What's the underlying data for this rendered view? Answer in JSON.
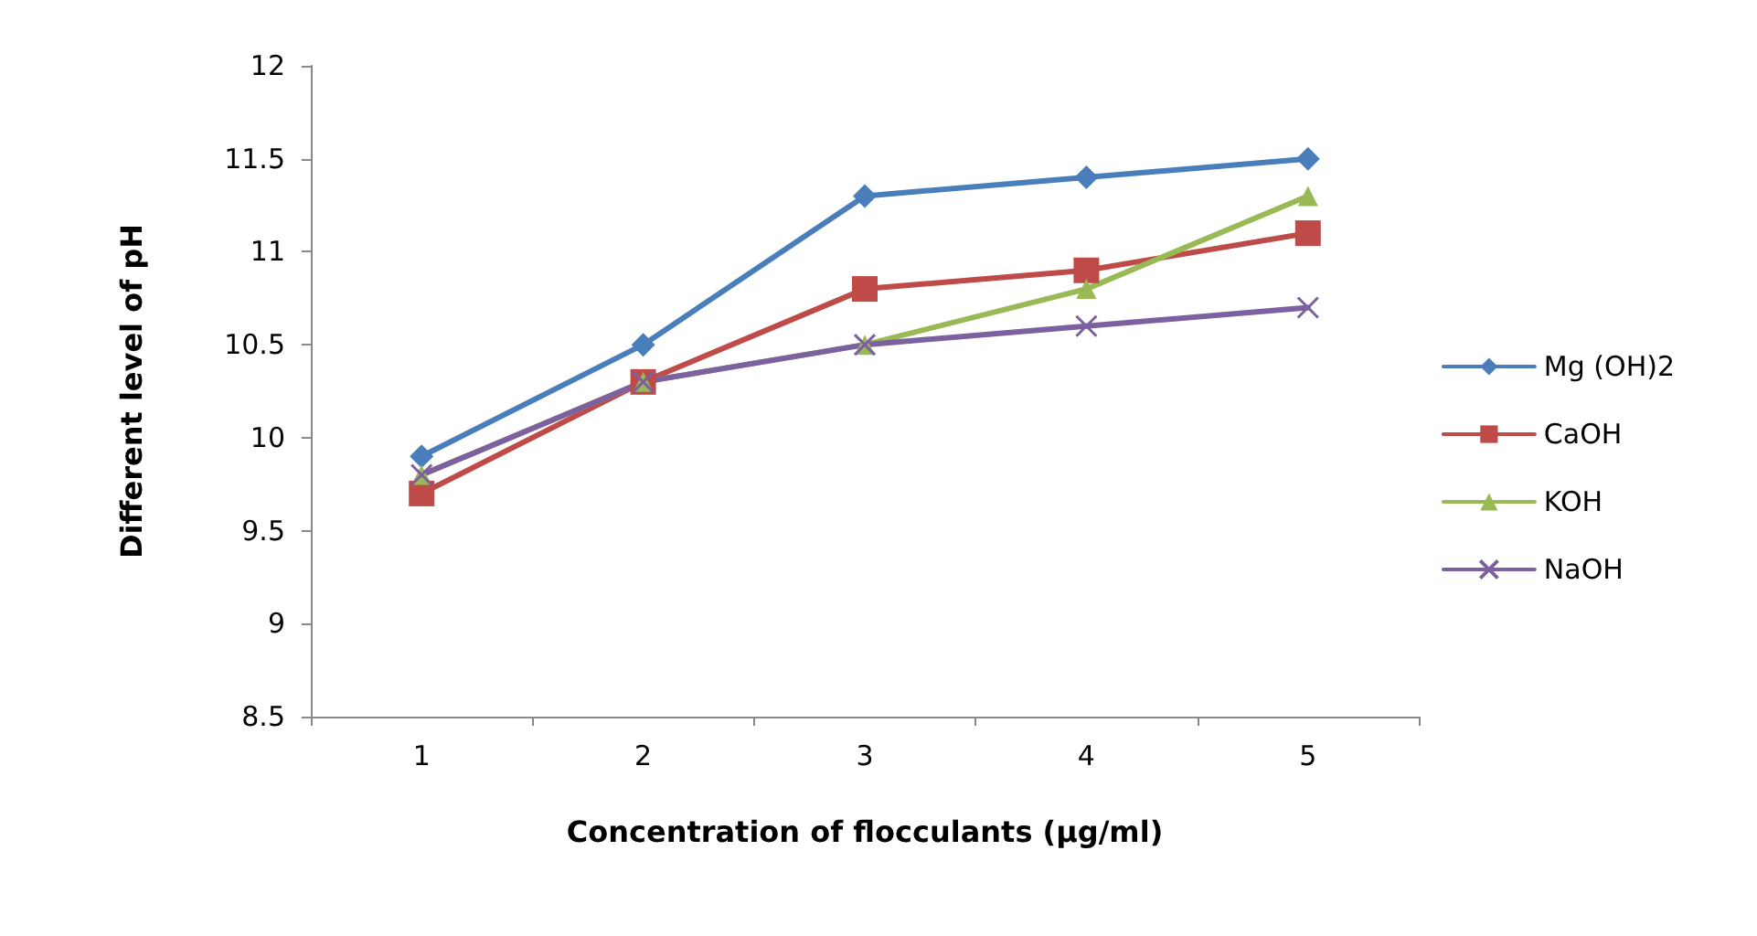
{
  "chart_data": {
    "type": "line",
    "xlabel": "Concentration of flocculants (µg/ml)",
    "ylabel": "Different level of pH",
    "categories": [
      "1",
      "2",
      "3",
      "4",
      "5"
    ],
    "series": [
      {
        "name": "Mg (OH)2",
        "color": "#4a7ebb",
        "marker": "diamond",
        "values": [
          9.9,
          10.5,
          11.3,
          11.4,
          11.5
        ]
      },
      {
        "name": "CaOH",
        "color": "#be4b48",
        "marker": "square",
        "values": [
          9.7,
          10.3,
          10.8,
          10.9,
          11.1
        ]
      },
      {
        "name": "KOH",
        "color": "#98b954",
        "marker": "triangle",
        "values": [
          9.8,
          10.3,
          10.5,
          10.8,
          11.3
        ]
      },
      {
        "name": "NaOH",
        "color": "#7d60a0",
        "marker": "cross",
        "values": [
          9.8,
          10.3,
          10.5,
          10.6,
          10.7
        ]
      }
    ],
    "ylim": [
      8.5,
      12
    ],
    "yticks": [
      8.5,
      9,
      9.5,
      10,
      10.5,
      11,
      11.5,
      12
    ],
    "grid": false,
    "legend": "right",
    "line_style": "solid"
  }
}
